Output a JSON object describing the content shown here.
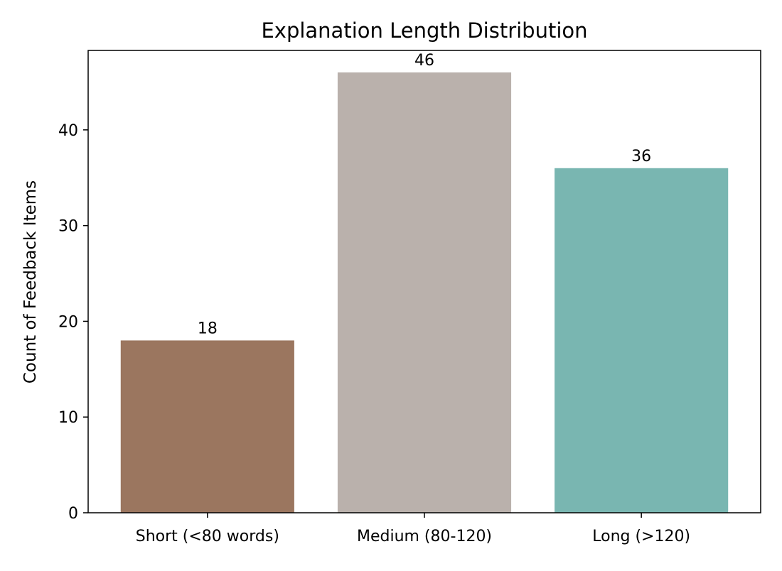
{
  "chart_data": {
    "type": "bar",
    "title": "Explanation Length Distribution",
    "xlabel": "",
    "ylabel": "Count of Feedback Items",
    "categories": [
      "Short (<80 words)",
      "Medium (80-120)",
      "Long (>120)"
    ],
    "values": [
      18,
      46,
      36
    ],
    "data_labels": [
      "18",
      "46",
      "36"
    ],
    "colors": [
      "#9b765f",
      "#bab1ac",
      "#79b6b1"
    ],
    "ylim": [
      0,
      48.3
    ],
    "yticks": [
      0,
      10,
      20,
      30,
      40
    ],
    "grid": false,
    "legend": "none"
  }
}
